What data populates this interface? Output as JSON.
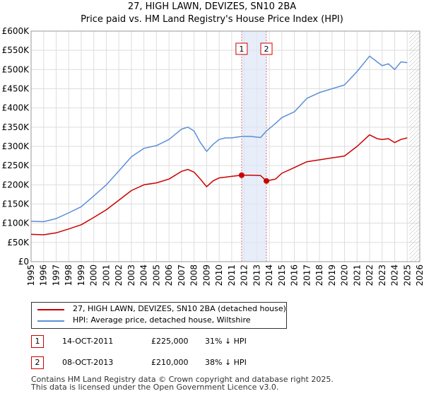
{
  "chart_data": {
    "type": "line",
    "title": "27, HIGH LAWN, DEVIZES, SN10 2BA",
    "subtitle": "Price paid vs. HM Land Registry's House Price Index (HPI)",
    "xlabel": "",
    "ylabel": "",
    "xlim": [
      1995,
      2026
    ],
    "ylim": [
      0,
      600000
    ],
    "x_ticks": [
      "1995",
      "1996",
      "1997",
      "1998",
      "1999",
      "2000",
      "2001",
      "2002",
      "2003",
      "2004",
      "2005",
      "2006",
      "2007",
      "2008",
      "2009",
      "2010",
      "2011",
      "2012",
      "2013",
      "2014",
      "2015",
      "2016",
      "2017",
      "2018",
      "2019",
      "2020",
      "2021",
      "2022",
      "2023",
      "2024",
      "2025",
      "2026"
    ],
    "y_ticks": [
      {
        "value": 0,
        "label": "£0"
      },
      {
        "value": 50000,
        "label": "£50K"
      },
      {
        "value": 100000,
        "label": "£100K"
      },
      {
        "value": 150000,
        "label": "£150K"
      },
      {
        "value": 200000,
        "label": "£200K"
      },
      {
        "value": 250000,
        "label": "£250K"
      },
      {
        "value": 300000,
        "label": "£300K"
      },
      {
        "value": 350000,
        "label": "£350K"
      },
      {
        "value": 400000,
        "label": "£400K"
      },
      {
        "value": 450000,
        "label": "£450K"
      },
      {
        "value": 500000,
        "label": "£500K"
      },
      {
        "value": 550000,
        "label": "£550K"
      },
      {
        "value": 600000,
        "label": "£600K"
      }
    ],
    "grid": true,
    "shaded_region": {
      "from": 2011.79,
      "to": 2013.77
    },
    "future_hatch_from": 2025.15,
    "series": [
      {
        "name": "27, HIGH LAWN, DEVIZES, SN10 2BA (detached house)",
        "color": "#cc0000",
        "x": [
          1995,
          1996,
          1997,
          1998,
          1999,
          2000,
          2001,
          2002,
          2003,
          2004,
          2005,
          2006,
          2007,
          2007.5,
          2008,
          2008.5,
          2009,
          2009.5,
          2010,
          2010.5,
          2011,
          2011.79,
          2012.5,
          2013.3,
          2013.77,
          2014.5,
          2015,
          2016,
          2017,
          2018,
          2019,
          2020,
          2021,
          2022,
          2022.6,
          2023,
          2023.5,
          2024,
          2024.5,
          2025
        ],
        "values": [
          71000,
          70000,
          75000,
          85000,
          96000,
          115000,
          135000,
          160000,
          185000,
          200000,
          205000,
          215000,
          235000,
          240000,
          233000,
          215000,
          195000,
          210000,
          218000,
          220000,
          222000,
          225000,
          225000,
          224000,
          210000,
          215000,
          230000,
          245000,
          260000,
          265000,
          270000,
          275000,
          300000,
          330000,
          320000,
          318000,
          320000,
          310000,
          318000,
          322000
        ]
      },
      {
        "name": "HPI: Average price, detached house, Wiltshire",
        "color": "#5b8fd6",
        "x": [
          1995,
          1996,
          1997,
          1998,
          1999,
          2000,
          2001,
          2002,
          2003,
          2004,
          2005,
          2006,
          2007,
          2007.5,
          2008,
          2008.5,
          2009,
          2009.5,
          2010,
          2010.5,
          2011,
          2011.79,
          2012.5,
          2013.3,
          2013.77,
          2014.5,
          2015,
          2016,
          2017,
          2018,
          2019,
          2020,
          2021,
          2022,
          2022.6,
          2023,
          2023.5,
          2024,
          2024.5,
          2025
        ],
        "values": [
          105000,
          104000,
          112000,
          127000,
          143000,
          171000,
          200000,
          236000,
          273000,
          295000,
          302000,
          318000,
          345000,
          350000,
          340000,
          310000,
          287000,
          305000,
          318000,
          322000,
          322000,
          326000,
          326000,
          323000,
          340000,
          360000,
          375000,
          390000,
          425000,
          440000,
          450000,
          460000,
          495000,
          535000,
          520000,
          510000,
          515000,
          500000,
          520000,
          518000
        ]
      }
    ],
    "annotations": [
      {
        "label": "1",
        "x": 2011.79,
        "y": 225000
      },
      {
        "label": "2",
        "x": 2013.77,
        "y": 210000
      }
    ]
  },
  "legend": {
    "items": [
      {
        "label": "27, HIGH LAWN, DEVIZES, SN10 2BA (detached house)",
        "color": "#cc0000"
      },
      {
        "label": "HPI: Average price, detached house, Wiltshire",
        "color": "#5b8fd6"
      }
    ]
  },
  "sales": [
    {
      "id": "1",
      "date": "14-OCT-2011",
      "price": "£225,000",
      "hpi": "31% ↓ HPI"
    },
    {
      "id": "2",
      "date": "08-OCT-2013",
      "price": "£210,000",
      "hpi": "38% ↓ HPI"
    }
  ],
  "footer": {
    "line1": "Contains HM Land Registry data © Crown copyright and database right 2025.",
    "line2": "This data is licensed under the Open Government Licence v3.0."
  }
}
